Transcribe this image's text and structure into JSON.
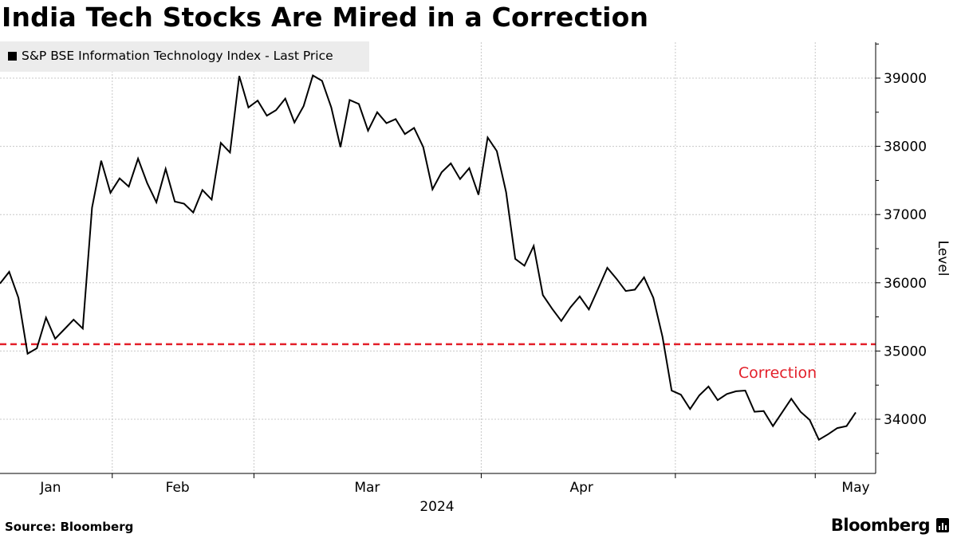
{
  "title": "India Tech Stocks Are Mired in a Correction",
  "source": "Source: Bloomberg",
  "brand": "Bloomberg",
  "chart_data": {
    "type": "line",
    "title": "India Tech Stocks Are Mired in a Correction",
    "xlabel": "2024",
    "ylabel": "Level",
    "ylim": [
      33250,
      39550
    ],
    "yticks": [
      34000,
      35000,
      36000,
      37000,
      38000,
      39000
    ],
    "xtick_labels": [
      "Jan",
      "Feb",
      "Mar",
      "Apr",
      "May"
    ],
    "xtick_year": "2024",
    "grid": true,
    "legend_position": "top-left",
    "series": [
      {
        "name": "S&P BSE Information Technology Index - Last Price",
        "color": "#000000",
        "values": [
          35990,
          36160,
          35780,
          34960,
          35040,
          35490,
          35180,
          35320,
          35460,
          35330,
          37100,
          37790,
          37320,
          37530,
          37410,
          37820,
          37460,
          37180,
          37670,
          37190,
          37160,
          37030,
          37360,
          37220,
          38050,
          37910,
          39030,
          38570,
          38670,
          38450,
          38530,
          38700,
          38350,
          38590,
          39040,
          38960,
          38570,
          37990,
          38680,
          38620,
          38230,
          38500,
          38340,
          38400,
          38180,
          38270,
          37990,
          37370,
          37620,
          37750,
          37520,
          37680,
          37290,
          38130,
          37930,
          37330,
          36350,
          36250,
          36540,
          35820,
          35620,
          35440,
          35640,
          35800,
          35610,
          35910,
          36220,
          36060,
          35880,
          35900,
          36080,
          35780,
          35210,
          34420,
          34360,
          34150,
          34350,
          34480,
          34280,
          34370,
          34410,
          34420,
          34110,
          34120,
          33900,
          34100,
          34300,
          34110,
          33990,
          33700,
          33780,
          33870,
          33900,
          34100
        ]
      }
    ],
    "reference_lines": [
      {
        "value": 35100,
        "color": "#e3202a",
        "style": "dashed",
        "label": "Correction"
      }
    ]
  }
}
